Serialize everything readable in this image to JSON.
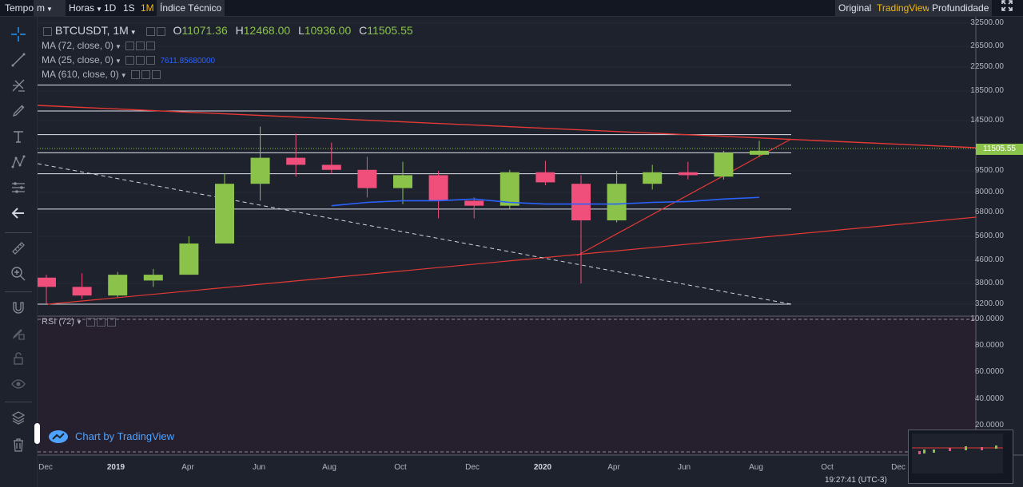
{
  "toolbar": {
    "time_label": "Tempo",
    "m_label": "m",
    "hours_label": "Horas",
    "d1_label": "1D",
    "s1_label": "1S",
    "m1_label": "1M",
    "indicator_label": "Índice Técnico",
    "original_label": "Original",
    "tradingview_label": "TradingView",
    "depth_label": "Profundidade",
    "fullscreen_icon": "fullscreen-icon"
  },
  "legend": {
    "symbol": "BTCUSDT, 1M",
    "o_label": "O",
    "o_value": "11071.36",
    "h_label": "H",
    "h_value": "12468.00",
    "l_label": "L",
    "l_value": "10936.00",
    "c_label": "C",
    "c_value": "11505.55",
    "ma1": "MA (72, close, 0)",
    "ma2": "MA (25, close, 0)",
    "ma2_value": "7611.85680000",
    "ma3": "MA (610, close, 0)",
    "rsi": "RSI (72)"
  },
  "price_axis": [
    "32500.00",
    "26500.00",
    "22500.00",
    "18500.00",
    "14500.00",
    "9500.00",
    "8000.00",
    "6800.00",
    "5600.00",
    "4600.00",
    "3800.00",
    "3200.00"
  ],
  "current_price": "11505.55",
  "rsi_axis": [
    "100.0000",
    "80.0000",
    "60.0000",
    "40.0000",
    "20.0000"
  ],
  "time_axis": [
    {
      "label": "Dec",
      "bold": false
    },
    {
      "label": "2019",
      "bold": true
    },
    {
      "label": "Apr",
      "bold": false
    },
    {
      "label": "Jun",
      "bold": false
    },
    {
      "label": "Aug",
      "bold": false
    },
    {
      "label": "Oct",
      "bold": false
    },
    {
      "label": "Dec",
      "bold": false
    },
    {
      "label": "2020",
      "bold": true
    },
    {
      "label": "Apr",
      "bold": false
    },
    {
      "label": "Jun",
      "bold": false
    },
    {
      "label": "Aug",
      "bold": false
    },
    {
      "label": "Oct",
      "bold": false
    },
    {
      "label": "Dec",
      "bold": false
    }
  ],
  "clock": "19:27:41 (UTC-3)",
  "brand": "Chart by TradingView",
  "colors": {
    "up": "#8bc34a",
    "down": "#ef4f7a",
    "ma": "#2962ff",
    "trend": "#e53935",
    "accent": "#f0b90b"
  },
  "chart_data": {
    "type": "candlestick",
    "symbol": "BTCUSDT",
    "interval": "1M",
    "candles": [
      {
        "o": 4000,
        "h": 4100,
        "l": 3200,
        "c": 3700
      },
      {
        "o": 3700,
        "h": 4150,
        "l": 3350,
        "c": 3450
      },
      {
        "o": 3450,
        "h": 4200,
        "l": 3400,
        "c": 4100
      },
      {
        "o": 3900,
        "h": 4300,
        "l": 3700,
        "c": 4100
      },
      {
        "o": 4100,
        "h": 5600,
        "l": 4100,
        "c": 5300
      },
      {
        "o": 5300,
        "h": 9300,
        "l": 5300,
        "c": 8600
      },
      {
        "o": 8600,
        "h": 13900,
        "l": 7500,
        "c": 10800
      },
      {
        "o": 10800,
        "h": 13200,
        "l": 9100,
        "c": 10100
      },
      {
        "o": 10100,
        "h": 12300,
        "l": 9300,
        "c": 9600
      },
      {
        "o": 9600,
        "h": 10900,
        "l": 7700,
        "c": 8300
      },
      {
        "o": 8300,
        "h": 10400,
        "l": 7300,
        "c": 9200
      },
      {
        "o": 9200,
        "h": 9500,
        "l": 6500,
        "c": 7500
      },
      {
        "o": 7500,
        "h": 7700,
        "l": 6500,
        "c": 7200
      },
      {
        "o": 7200,
        "h": 9600,
        "l": 7000,
        "c": 9400
      },
      {
        "o": 9400,
        "h": 10500,
        "l": 8500,
        "c": 8700
      },
      {
        "o": 8600,
        "h": 9200,
        "l": 3800,
        "c": 6400
      },
      {
        "o": 6400,
        "h": 9500,
        "l": 6300,
        "c": 8600
      },
      {
        "o": 8600,
        "h": 10100,
        "l": 8200,
        "c": 9400
      },
      {
        "o": 9400,
        "h": 10400,
        "l": 8900,
        "c": 9200
      },
      {
        "o": 9100,
        "h": 11500,
        "l": 8900,
        "c": 11300
      },
      {
        "o": 11100,
        "h": 12500,
        "l": 10900,
        "c": 11500
      }
    ],
    "ma25": [
      7200,
      7400,
      7500,
      7500,
      7600,
      7400,
      7300,
      7300,
      7300,
      7400,
      7450,
      7600,
      7700
    ],
    "horizontal_lines": [
      19500,
      15800,
      13100,
      11300,
      9300,
      7000,
      3200
    ],
    "rsi_bands": [
      80,
      20
    ]
  }
}
